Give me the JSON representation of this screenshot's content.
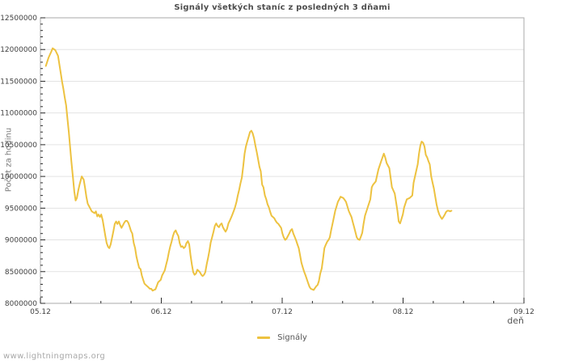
{
  "title": "Signály všetkých staníc z posledných 3 dňami",
  "watermark": "www.lightningmaps.org",
  "colors": {
    "line": "#edc240",
    "grid": "#e3e3e3",
    "border": "#aaaaaa",
    "tick": "#2a2a2a",
    "tick_label": "#3f3f3f",
    "background": "#ffffff"
  },
  "chart_data": {
    "type": "line",
    "title": "Signály všetkých staníc z posledných 3 dňami",
    "xlabel": "deň",
    "ylabel": "Počet za hodinu",
    "xlim": [
      0,
      4
    ],
    "ylim": [
      8000000,
      12500000
    ],
    "y_major_step": 500000,
    "y_minor_step": 100000,
    "x_minor_step": 0.25,
    "x_ticks": [
      {
        "t": 0,
        "label": "05.12"
      },
      {
        "t": 1,
        "label": "06.12"
      },
      {
        "t": 2,
        "label": "07.12"
      },
      {
        "t": 3,
        "label": "08.12"
      },
      {
        "t": 4,
        "label": "09.12"
      }
    ],
    "grid": "horizontal-only",
    "legend_position": "bottom-center",
    "series": [
      {
        "name": "Signály",
        "color": "#edc240",
        "points": [
          [
            0.045,
            11740000
          ],
          [
            0.067,
            11870000
          ],
          [
            0.09,
            11970000
          ],
          [
            0.101,
            12020000
          ],
          [
            0.123,
            11990000
          ],
          [
            0.146,
            11900000
          ],
          [
            0.157,
            11760000
          ],
          [
            0.168,
            11630000
          ],
          [
            0.179,
            11490000
          ],
          [
            0.19,
            11380000
          ],
          [
            0.201,
            11250000
          ],
          [
            0.213,
            11120000
          ],
          [
            0.224,
            10900000
          ],
          [
            0.235,
            10700000
          ],
          [
            0.246,
            10450000
          ],
          [
            0.257,
            10220000
          ],
          [
            0.268,
            10000000
          ],
          [
            0.28,
            9760000
          ],
          [
            0.291,
            9620000
          ],
          [
            0.302,
            9660000
          ],
          [
            0.313,
            9780000
          ],
          [
            0.324,
            9870000
          ],
          [
            0.342,
            10000000
          ],
          [
            0.358,
            9950000
          ],
          [
            0.369,
            9820000
          ],
          [
            0.38,
            9680000
          ],
          [
            0.391,
            9570000
          ],
          [
            0.403,
            9530000
          ],
          [
            0.425,
            9450000
          ],
          [
            0.448,
            9420000
          ],
          [
            0.459,
            9450000
          ],
          [
            0.47,
            9370000
          ],
          [
            0.481,
            9400000
          ],
          [
            0.492,
            9360000
          ],
          [
            0.503,
            9400000
          ],
          [
            0.515,
            9310000
          ],
          [
            0.526,
            9190000
          ],
          [
            0.537,
            9060000
          ],
          [
            0.548,
            8950000
          ],
          [
            0.56,
            8890000
          ],
          [
            0.57,
            8870000
          ],
          [
            0.581,
            8930000
          ],
          [
            0.593,
            9040000
          ],
          [
            0.604,
            9140000
          ],
          [
            0.615,
            9250000
          ],
          [
            0.626,
            9290000
          ],
          [
            0.637,
            9250000
          ],
          [
            0.649,
            9290000
          ],
          [
            0.66,
            9230000
          ],
          [
            0.671,
            9190000
          ],
          [
            0.682,
            9230000
          ],
          [
            0.693,
            9270000
          ],
          [
            0.705,
            9300000
          ],
          [
            0.716,
            9300000
          ],
          [
            0.727,
            9270000
          ],
          [
            0.738,
            9210000
          ],
          [
            0.749,
            9140000
          ],
          [
            0.76,
            9100000
          ],
          [
            0.772,
            8950000
          ],
          [
            0.783,
            8870000
          ],
          [
            0.794,
            8740000
          ],
          [
            0.805,
            8650000
          ],
          [
            0.817,
            8560000
          ],
          [
            0.828,
            8540000
          ],
          [
            0.839,
            8440000
          ],
          [
            0.85,
            8370000
          ],
          [
            0.861,
            8310000
          ],
          [
            0.872,
            8290000
          ],
          [
            0.883,
            8270000
          ],
          [
            0.895,
            8250000
          ],
          [
            0.906,
            8230000
          ],
          [
            0.917,
            8230000
          ],
          [
            0.928,
            8200000
          ],
          [
            0.939,
            8210000
          ],
          [
            0.951,
            8220000
          ],
          [
            0.962,
            8270000
          ],
          [
            0.973,
            8330000
          ],
          [
            0.984,
            8350000
          ],
          [
            0.995,
            8370000
          ],
          [
            1.007,
            8440000
          ],
          [
            1.018,
            8480000
          ],
          [
            1.029,
            8520000
          ],
          [
            1.04,
            8610000
          ],
          [
            1.051,
            8690000
          ],
          [
            1.062,
            8800000
          ],
          [
            1.073,
            8890000
          ],
          [
            1.085,
            8970000
          ],
          [
            1.096,
            9060000
          ],
          [
            1.107,
            9120000
          ],
          [
            1.119,
            9150000
          ],
          [
            1.13,
            9100000
          ],
          [
            1.141,
            9060000
          ],
          [
            1.152,
            8950000
          ],
          [
            1.163,
            8890000
          ],
          [
            1.175,
            8900000
          ],
          [
            1.186,
            8870000
          ],
          [
            1.197,
            8890000
          ],
          [
            1.208,
            8950000
          ],
          [
            1.22,
            8980000
          ],
          [
            1.231,
            8930000
          ],
          [
            1.242,
            8750000
          ],
          [
            1.253,
            8610000
          ],
          [
            1.264,
            8490000
          ],
          [
            1.275,
            8450000
          ],
          [
            1.287,
            8470000
          ],
          [
            1.298,
            8530000
          ],
          [
            1.309,
            8510000
          ],
          [
            1.32,
            8490000
          ],
          [
            1.331,
            8450000
          ],
          [
            1.342,
            8430000
          ],
          [
            1.353,
            8450000
          ],
          [
            1.364,
            8490000
          ],
          [
            1.376,
            8620000
          ],
          [
            1.387,
            8720000
          ],
          [
            1.398,
            8830000
          ],
          [
            1.409,
            8960000
          ],
          [
            1.42,
            9040000
          ],
          [
            1.432,
            9130000
          ],
          [
            1.443,
            9220000
          ],
          [
            1.454,
            9260000
          ],
          [
            1.465,
            9220000
          ],
          [
            1.477,
            9200000
          ],
          [
            1.488,
            9240000
          ],
          [
            1.499,
            9260000
          ],
          [
            1.51,
            9200000
          ],
          [
            1.521,
            9160000
          ],
          [
            1.532,
            9130000
          ],
          [
            1.543,
            9170000
          ],
          [
            1.555,
            9260000
          ],
          [
            1.566,
            9300000
          ],
          [
            1.577,
            9350000
          ],
          [
            1.588,
            9400000
          ],
          [
            1.6,
            9460000
          ],
          [
            1.611,
            9520000
          ],
          [
            1.622,
            9600000
          ],
          [
            1.633,
            9700000
          ],
          [
            1.644,
            9790000
          ],
          [
            1.655,
            9890000
          ],
          [
            1.666,
            9980000
          ],
          [
            1.678,
            10170000
          ],
          [
            1.689,
            10360000
          ],
          [
            1.7,
            10470000
          ],
          [
            1.711,
            10550000
          ],
          [
            1.722,
            10620000
          ],
          [
            1.734,
            10700000
          ],
          [
            1.745,
            10720000
          ],
          [
            1.756,
            10680000
          ],
          [
            1.767,
            10600000
          ],
          [
            1.778,
            10490000
          ],
          [
            1.79,
            10380000
          ],
          [
            1.801,
            10270000
          ],
          [
            1.812,
            10150000
          ],
          [
            1.823,
            10080000
          ],
          [
            1.834,
            9870000
          ],
          [
            1.845,
            9830000
          ],
          [
            1.857,
            9700000
          ],
          [
            1.868,
            9640000
          ],
          [
            1.879,
            9560000
          ],
          [
            1.89,
            9510000
          ],
          [
            1.901,
            9440000
          ],
          [
            1.912,
            9380000
          ],
          [
            1.924,
            9360000
          ],
          [
            1.935,
            9340000
          ],
          [
            1.946,
            9300000
          ],
          [
            1.957,
            9270000
          ],
          [
            1.969,
            9250000
          ],
          [
            1.98,
            9220000
          ],
          [
            1.991,
            9190000
          ],
          [
            2.002,
            9100000
          ],
          [
            2.013,
            9040000
          ],
          [
            2.025,
            9000000
          ],
          [
            2.036,
            9020000
          ],
          [
            2.058,
            9100000
          ],
          [
            2.07,
            9150000
          ],
          [
            2.081,
            9170000
          ],
          [
            2.092,
            9100000
          ],
          [
            2.103,
            9050000
          ],
          [
            2.114,
            9000000
          ],
          [
            2.126,
            8930000
          ],
          [
            2.137,
            8870000
          ],
          [
            2.148,
            8760000
          ],
          [
            2.159,
            8640000
          ],
          [
            2.17,
            8570000
          ],
          [
            2.181,
            8500000
          ],
          [
            2.193,
            8440000
          ],
          [
            2.204,
            8380000
          ],
          [
            2.215,
            8320000
          ],
          [
            2.226,
            8260000
          ],
          [
            2.237,
            8230000
          ],
          [
            2.248,
            8220000
          ],
          [
            2.26,
            8210000
          ],
          [
            2.271,
            8240000
          ],
          [
            2.282,
            8270000
          ],
          [
            2.293,
            8290000
          ],
          [
            2.304,
            8350000
          ],
          [
            2.315,
            8470000
          ],
          [
            2.327,
            8550000
          ],
          [
            2.338,
            8700000
          ],
          [
            2.349,
            8870000
          ],
          [
            2.36,
            8920000
          ],
          [
            2.372,
            8970000
          ],
          [
            2.383,
            9000000
          ],
          [
            2.394,
            9040000
          ],
          [
            2.405,
            9150000
          ],
          [
            2.416,
            9250000
          ],
          [
            2.428,
            9360000
          ],
          [
            2.439,
            9460000
          ],
          [
            2.45,
            9530000
          ],
          [
            2.461,
            9600000
          ],
          [
            2.472,
            9640000
          ],
          [
            2.483,
            9680000
          ],
          [
            2.494,
            9670000
          ],
          [
            2.506,
            9660000
          ],
          [
            2.517,
            9630000
          ],
          [
            2.528,
            9600000
          ],
          [
            2.539,
            9530000
          ],
          [
            2.55,
            9460000
          ],
          [
            2.561,
            9410000
          ],
          [
            2.573,
            9360000
          ],
          [
            2.584,
            9280000
          ],
          [
            2.595,
            9200000
          ],
          [
            2.606,
            9120000
          ],
          [
            2.617,
            9040000
          ],
          [
            2.628,
            9010000
          ],
          [
            2.64,
            9000000
          ],
          [
            2.651,
            9050000
          ],
          [
            2.662,
            9110000
          ],
          [
            2.673,
            9250000
          ],
          [
            2.685,
            9380000
          ],
          [
            2.707,
            9510000
          ],
          [
            2.729,
            9640000
          ],
          [
            2.741,
            9830000
          ],
          [
            2.752,
            9870000
          ],
          [
            2.774,
            9920000
          ],
          [
            2.796,
            10110000
          ],
          [
            2.819,
            10240000
          ],
          [
            2.841,
            10360000
          ],
          [
            2.852,
            10300000
          ],
          [
            2.864,
            10210000
          ],
          [
            2.886,
            10130000
          ],
          [
            2.908,
            9830000
          ],
          [
            2.931,
            9730000
          ],
          [
            2.942,
            9600000
          ],
          [
            2.953,
            9460000
          ],
          [
            2.964,
            9290000
          ],
          [
            2.975,
            9260000
          ],
          [
            2.998,
            9400000
          ],
          [
            3.009,
            9510000
          ],
          [
            3.031,
            9640000
          ],
          [
            3.054,
            9660000
          ],
          [
            3.076,
            9700000
          ],
          [
            3.087,
            9900000
          ],
          [
            3.109,
            10090000
          ],
          [
            3.121,
            10190000
          ],
          [
            3.132,
            10360000
          ],
          [
            3.143,
            10490000
          ],
          [
            3.154,
            10550000
          ],
          [
            3.166,
            10530000
          ],
          [
            3.177,
            10470000
          ],
          [
            3.188,
            10340000
          ],
          [
            3.199,
            10300000
          ],
          [
            3.21,
            10240000
          ],
          [
            3.221,
            10190000
          ],
          [
            3.233,
            10000000
          ],
          [
            3.244,
            9900000
          ],
          [
            3.255,
            9810000
          ],
          [
            3.266,
            9680000
          ],
          [
            3.277,
            9560000
          ],
          [
            3.289,
            9460000
          ],
          [
            3.3,
            9400000
          ],
          [
            3.311,
            9360000
          ],
          [
            3.322,
            9330000
          ],
          [
            3.333,
            9360000
          ],
          [
            3.345,
            9400000
          ],
          [
            3.356,
            9440000
          ],
          [
            3.367,
            9460000
          ],
          [
            3.378,
            9460000
          ],
          [
            3.389,
            9450000
          ],
          [
            3.4,
            9460000
          ]
        ]
      }
    ]
  }
}
